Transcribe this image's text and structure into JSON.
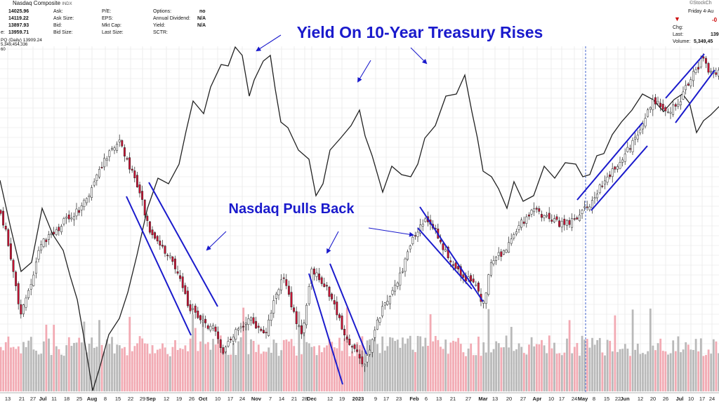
{
  "header": {
    "title": "Nasdaq Composite",
    "exchange": "INDX",
    "brand": "©StockCh",
    "date": "Friday 4-Au",
    "quote_values": [
      "14025.96",
      "14119.22",
      "13897.93",
      "13959.71"
    ],
    "quote_prefix": "e:",
    "col2_labels": [
      "Ask:",
      "Ask Size:",
      "Bid:",
      "Bid Size:"
    ],
    "col3_labels": [
      "P/E:",
      "EPS:",
      "Mkt Cap:",
      "Last Size:"
    ],
    "col4_labels": [
      "Options:",
      "Annual Dividend:",
      "Yield:",
      "SCTR:"
    ],
    "col4_values": [
      "no",
      "N/A",
      "N/A",
      ""
    ],
    "right_labels": [
      "Chg:",
      "Last:",
      "Volume:"
    ],
    "right_values": [
      "-0",
      "139",
      "5,349,45"
    ],
    "down_icon": "triangle-down-icon",
    "ticker_line": "PQ (Daily) 13909.24",
    "volume_line": "5,349,454,336",
    "misc_line": "60",
    "colors": {
      "down_arrow": "#cc0000"
    }
  },
  "chart_data": {
    "type": "candlestick",
    "annotations": [
      "Yield On 10-Year Treasury Rises",
      "Nasdaq Pulls Back"
    ],
    "date_range": [
      "2022-06-13",
      "2023-08-04"
    ],
    "x_tick_labels": [
      "13",
      "21",
      "27",
      "Jul",
      "11",
      "18",
      "25",
      "Aug",
      "8",
      "15",
      "22",
      "29",
      "Sep",
      "12",
      "19",
      "26",
      "Oct",
      "10",
      "17",
      "24",
      "Nov",
      "7",
      "14",
      "21",
      "28",
      "Dec",
      "12",
      "19",
      "2023",
      "9",
      "17",
      "23",
      "Feb",
      "6",
      "13",
      "21",
      "27",
      "Mar",
      "13",
      "20",
      "27",
      "Apr",
      "10",
      "17",
      "24",
      "May",
      "8",
      "15",
      "22",
      "Jun",
      "12",
      "20",
      "26",
      "Jul",
      "10",
      "17",
      "24"
    ],
    "series": [
      {
        "name": "",
        "kind": "candlestick",
        "colors": {
          "up": "#ffffff",
          "down": "#cc1133",
          "outline": "#222222"
        }
      },
      {
        "name": "",
        "kind": "line",
        "color": "#222222"
      },
      {
        "name": "",
        "kind": "volume",
        "colors": {
          "up": "#b9b9b9",
          "down": "#f2aab3"
        }
      }
    ],
    "grid": true,
    "colors": {
      "annotation": "#1a1acc",
      "trend": "#1a1acc",
      "divider": "#4466cc"
    }
  }
}
